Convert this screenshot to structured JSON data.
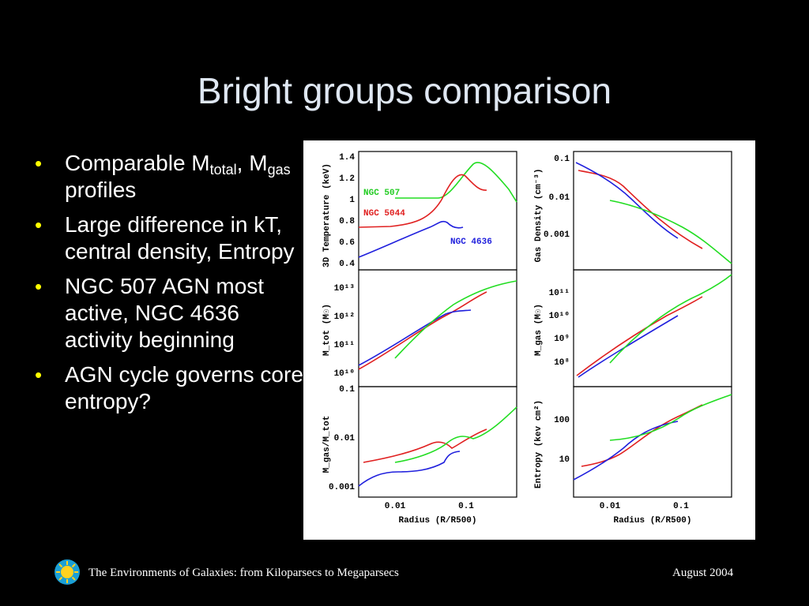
{
  "slide": {
    "title": "Bright groups comparison",
    "bullets": [
      {
        "text": "Comparable M",
        "sub1": "total",
        "mid": ", M",
        "sub2": "gas",
        "tail": " profiles"
      },
      {
        "text": "Large difference in kT, central density, Entropy"
      },
      {
        "text": "NGC 507 AGN most active, NGC 4636 activity beginning"
      },
      {
        "text": "AGN cycle governs core entropy?"
      }
    ],
    "bullet_char": "•",
    "footer_left": "The Environments of Galaxies: from Kiloparsecs to Megaparsecs",
    "footer_right": "August 2004",
    "colors": {
      "bullet": "#ffff00",
      "title": "#dfe7f2",
      "ngc507": "#22dd22",
      "ngc5044": "#e02020",
      "ngc4636": "#2020dd"
    }
  },
  "figure": {
    "labels": {
      "temp_y": "3D Temperature (keV)",
      "dens_y": "Gas Density (cm⁻³)",
      "mtot_y": "M_tot (M☉)",
      "mgas_y": "M_gas (M☉)",
      "frac_y": "M_gas/M_tot",
      "entropy_y": "Entropy (kev cm²)",
      "x_label": "Radius (R/R500)",
      "ngc507": "NGC 507",
      "ngc5044": "NGC 5044",
      "ngc4636": "NGC 4636"
    },
    "ticks": {
      "temp": [
        "1.4",
        "1.2",
        "1",
        "0.8",
        "0.6",
        "0.4"
      ],
      "dens": [
        "0.1",
        "0.01",
        "0.001"
      ],
      "mtot": [
        "10¹³",
        "10¹²",
        "10¹¹",
        "10¹⁰"
      ],
      "mgas": [
        "10¹¹",
        "10¹⁰",
        "10⁹",
        "10⁸"
      ],
      "frac": [
        "0.1",
        "0.01",
        "0.001"
      ],
      "entropy": [
        "100",
        "10"
      ],
      "x": [
        "0.01",
        "0.1"
      ]
    }
  }
}
